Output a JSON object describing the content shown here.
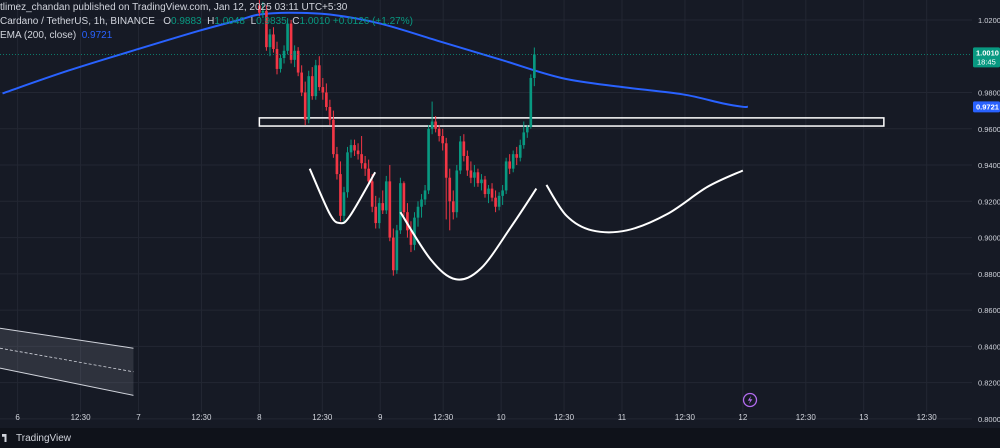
{
  "header": {
    "publish_line": "tlimez_chandan published on TradingView.com, Jan 12, 2025 03:11 UTC+5:30",
    "symbol": "Cardano / TetherUS, 1h, BINANCE",
    "ohlc": {
      "o_label": "O",
      "o_value": "0.9883",
      "h_label": "H",
      "h_value": "1.0048",
      "l_label": "L",
      "l_value": "0.9835",
      "c_label": "C",
      "c_value": "1.0010",
      "change": "+0.0126 (+1.27%)"
    },
    "ema_label": "EMA (200, close)",
    "ema_value": "0.9721"
  },
  "footer": {
    "brand": "TradingView"
  },
  "colors": {
    "background": "#161a25",
    "up": "#089981",
    "down": "#f23645",
    "ema": "#2962ff",
    "text": "#d1d4dc",
    "grid": "#232733",
    "drawing": "#ffffff"
  },
  "chart_data": {
    "type": "candlestick",
    "symbol": "Cardano / TetherUS",
    "interval": "1h",
    "exchange": "BINANCE",
    "y_axis": {
      "ticks": [
        "1.02000",
        "0.98000",
        "0.96000",
        "0.94000",
        "0.92000",
        "0.90000",
        "0.88000",
        "0.86000",
        "0.84000",
        "0.82000",
        "0.80000"
      ],
      "range": [
        0.795,
        1.031
      ]
    },
    "x_axis": {
      "ticks": [
        {
          "label": "6",
          "t": 0
        },
        {
          "label": "12:30",
          "t": 12.5
        },
        {
          "label": "7",
          "t": 24
        },
        {
          "label": "12:30",
          "t": 36.5
        },
        {
          "label": "8",
          "t": 48
        },
        {
          "label": "12:30",
          "t": 60.5
        },
        {
          "label": "9",
          "t": 72
        },
        {
          "label": "12:30",
          "t": 84.5
        },
        {
          "label": "10",
          "t": 96
        },
        {
          "label": "12:30",
          "t": 108.5
        },
        {
          "label": "11",
          "t": 120
        },
        {
          "label": "12:30",
          "t": 132.5
        },
        {
          "label": "12",
          "t": 144
        },
        {
          "label": "12:30",
          "t": 156.5
        },
        {
          "label": "13",
          "t": 168
        },
        {
          "label": "12:30",
          "t": 180.5
        }
      ],
      "range": [
        -3.5,
        189.5
      ]
    },
    "price_labels": [
      {
        "value": 1.001,
        "text": "1.0010",
        "sub": "18:45",
        "kind": "last"
      },
      {
        "value": 0.9721,
        "text": "0.9721",
        "kind": "ema"
      }
    ],
    "ema": [
      [
        -3,
        0.9795
      ],
      [
        10,
        0.992
      ],
      [
        24,
        1.004
      ],
      [
        36,
        1.014
      ],
      [
        44,
        1.02
      ],
      [
        48,
        1.023
      ],
      [
        54,
        1.024
      ],
      [
        62,
        1.023
      ],
      [
        72,
        1.018
      ],
      [
        84,
        1.008
      ],
      [
        96,
        0.998
      ],
      [
        108,
        0.988
      ],
      [
        120,
        0.983
      ],
      [
        132,
        0.979
      ],
      [
        140,
        0.974
      ],
      [
        144,
        0.9721
      ],
      [
        145,
        0.9722
      ]
    ],
    "candles": [
      [
        48.0,
        1.028,
        1.031,
        1.022,
        1.024
      ],
      [
        48.7,
        1.024,
        1.03,
        1.021,
        1.025
      ],
      [
        49.4,
        1.025,
        1.028,
        1.003,
        1.005
      ],
      [
        50.1,
        1.005,
        1.015,
        1.0,
        1.012
      ],
      [
        50.8,
        1.012,
        1.016,
        1.002,
        1.004
      ],
      [
        51.5,
        1.004,
        1.008,
        0.99,
        0.993
      ],
      [
        52.2,
        0.993,
        1.001,
        0.991,
        0.999
      ],
      [
        52.9,
        0.999,
        1.006,
        0.996,
        1.003
      ],
      [
        53.6,
        1.003,
        1.021,
        1.001,
        1.018
      ],
      [
        54.3,
        1.018,
        1.02,
        0.996,
        0.998
      ],
      [
        55.0,
        0.998,
        1.006,
        0.994,
        1.003
      ],
      [
        55.7,
        1.003,
        1.005,
        0.989,
        0.991
      ],
      [
        56.4,
        0.991,
        0.995,
        0.978,
        0.98
      ],
      [
        57.1,
        0.98,
        0.986,
        0.962,
        0.965
      ],
      [
        57.8,
        0.965,
        0.992,
        0.963,
        0.989
      ],
      [
        58.5,
        0.989,
        0.994,
        0.976,
        0.978
      ],
      [
        59.2,
        0.978,
        0.998,
        0.976,
        0.995
      ],
      [
        59.9,
        0.995,
        1.0,
        0.981,
        0.983
      ],
      [
        60.6,
        0.983,
        0.988,
        0.976,
        0.98
      ],
      [
        61.3,
        0.98,
        0.985,
        0.97,
        0.972
      ],
      [
        62.0,
        0.972,
        0.976,
        0.962,
        0.965
      ],
      [
        62.7,
        0.965,
        0.97,
        0.944,
        0.946
      ],
      [
        63.4,
        0.946,
        0.95,
        0.932,
        0.935
      ],
      [
        64.1,
        0.935,
        0.942,
        0.909,
        0.912
      ],
      [
        64.8,
        0.912,
        0.928,
        0.908,
        0.925
      ],
      [
        65.5,
        0.925,
        0.95,
        0.922,
        0.947
      ],
      [
        66.2,
        0.947,
        0.954,
        0.944,
        0.951
      ],
      [
        66.9,
        0.951,
        0.954,
        0.945,
        0.948
      ],
      [
        67.6,
        0.948,
        0.952,
        0.943,
        0.946
      ],
      [
        68.3,
        0.946,
        0.956,
        0.938,
        0.941
      ],
      [
        69.0,
        0.941,
        0.945,
        0.934,
        0.938
      ],
      [
        69.7,
        0.938,
        0.943,
        0.929,
        0.931
      ],
      [
        70.4,
        0.931,
        0.935,
        0.914,
        0.917
      ],
      [
        71.1,
        0.917,
        0.923,
        0.905,
        0.908
      ],
      [
        71.8,
        0.908,
        0.922,
        0.905,
        0.919
      ],
      [
        72.5,
        0.919,
        0.926,
        0.913,
        0.915
      ],
      [
        73.2,
        0.915,
        0.934,
        0.913,
        0.931
      ],
      [
        73.9,
        0.931,
        0.94,
        0.898,
        0.9
      ],
      [
        74.6,
        0.9,
        0.905,
        0.879,
        0.882
      ],
      [
        75.3,
        0.882,
        0.907,
        0.88,
        0.904
      ],
      [
        76.0,
        0.904,
        0.933,
        0.902,
        0.93
      ],
      [
        76.7,
        0.93,
        0.931,
        0.912,
        0.914
      ],
      [
        77.4,
        0.914,
        0.919,
        0.9,
        0.904
      ],
      [
        78.1,
        0.904,
        0.909,
        0.892,
        0.896
      ],
      [
        78.8,
        0.896,
        0.914,
        0.893,
        0.911
      ],
      [
        79.5,
        0.911,
        0.92,
        0.906,
        0.917
      ],
      [
        80.2,
        0.917,
        0.924,
        0.911,
        0.921
      ],
      [
        80.9,
        0.921,
        0.929,
        0.918,
        0.926
      ],
      [
        81.6,
        0.926,
        0.962,
        0.924,
        0.96
      ],
      [
        82.3,
        0.96,
        0.975,
        0.957,
        0.964
      ],
      [
        83.0,
        0.964,
        0.967,
        0.958,
        0.96
      ],
      [
        83.7,
        0.96,
        0.962,
        0.953,
        0.956
      ],
      [
        84.4,
        0.956,
        0.96,
        0.948,
        0.952
      ],
      [
        85.1,
        0.952,
        0.955,
        0.91,
        0.933
      ],
      [
        85.8,
        0.933,
        0.938,
        0.904,
        0.92
      ],
      [
        86.5,
        0.92,
        0.926,
        0.91,
        0.914
      ],
      [
        87.2,
        0.914,
        0.94,
        0.911,
        0.937
      ],
      [
        87.9,
        0.937,
        0.956,
        0.935,
        0.953
      ],
      [
        88.6,
        0.953,
        0.957,
        0.942,
        0.945
      ],
      [
        89.3,
        0.945,
        0.948,
        0.934,
        0.937
      ],
      [
        90.0,
        0.937,
        0.942,
        0.93,
        0.933
      ],
      [
        90.7,
        0.933,
        0.94,
        0.928,
        0.936
      ],
      [
        91.4,
        0.936,
        0.938,
        0.928,
        0.93
      ],
      [
        92.1,
        0.93,
        0.935,
        0.926,
        0.932
      ],
      [
        92.8,
        0.932,
        0.934,
        0.922,
        0.924
      ],
      [
        93.5,
        0.924,
        0.929,
        0.919,
        0.927
      ],
      [
        94.2,
        0.927,
        0.93,
        0.92,
        0.922
      ],
      [
        94.9,
        0.922,
        0.926,
        0.914,
        0.917
      ],
      [
        95.6,
        0.917,
        0.925,
        0.915,
        0.923
      ],
      [
        96.3,
        0.923,
        0.929,
        0.918,
        0.926
      ],
      [
        97.0,
        0.926,
        0.944,
        0.924,
        0.942
      ],
      [
        97.7,
        0.942,
        0.946,
        0.935,
        0.938
      ],
      [
        98.4,
        0.938,
        0.948,
        0.936,
        0.946
      ],
      [
        99.1,
        0.946,
        0.95,
        0.94,
        0.944
      ],
      [
        99.8,
        0.944,
        0.954,
        0.942,
        0.951
      ],
      [
        100.5,
        0.951,
        0.964,
        0.949,
        0.958
      ],
      [
        101.2,
        0.958,
        0.962,
        0.955,
        0.961
      ],
      [
        101.9,
        0.961,
        0.99,
        0.96,
        0.988
      ],
      [
        102.6,
        0.988,
        1.0048,
        0.9835,
        1.001
      ]
    ],
    "annotations": [
      {
        "type": "horizontal-zone",
        "from_t": 48,
        "to_t": 172,
        "y_top": 0.966,
        "y_bottom": 0.9615
      },
      {
        "type": "arc",
        "points": [
          [
            58,
            0.938
          ],
          [
            62,
            0.913
          ],
          [
            64,
            0.908
          ],
          [
            66,
            0.912
          ],
          [
            71,
            0.936
          ]
        ]
      },
      {
        "type": "arc",
        "points": [
          [
            76,
            0.914
          ],
          [
            82,
            0.888
          ],
          [
            87,
            0.877
          ],
          [
            92,
            0.883
          ],
          [
            98,
            0.906
          ],
          [
            103,
            0.927
          ]
        ]
      },
      {
        "type": "arc",
        "points": [
          [
            105,
            0.929
          ],
          [
            109,
            0.912
          ],
          [
            114,
            0.904
          ],
          [
            121,
            0.904
          ],
          [
            129,
            0.913
          ],
          [
            137,
            0.928
          ],
          [
            144,
            0.937
          ]
        ]
      },
      {
        "type": "channel",
        "from_t": -3.5,
        "to_t": 23,
        "upper": [
          0.85,
          0.839
        ],
        "lower": [
          0.828,
          0.813
        ],
        "mid": [
          0.839,
          0.826
        ]
      }
    ]
  }
}
